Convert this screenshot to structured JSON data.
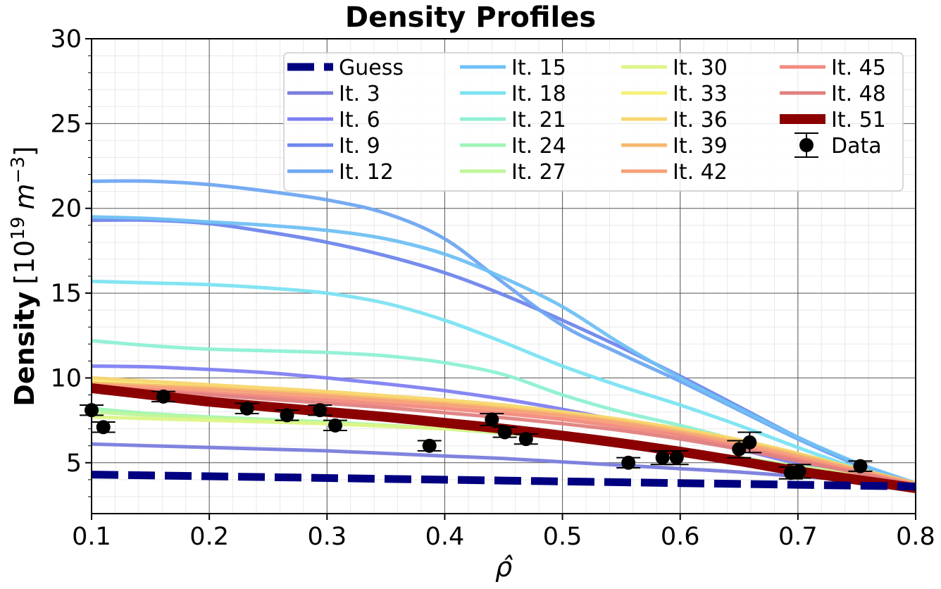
{
  "chart_data": {
    "type": "line",
    "title": "Density Profiles",
    "xlabel": "ρ̂",
    "ylabel_bold": "Density",
    "ylabel_unit": "[10",
    "ylabel_exp": "19",
    "ylabel_m": "m",
    "ylabel_mexp": "−3",
    "ylabel_close": "]",
    "xlim": [
      0.1,
      0.8
    ],
    "ylim": [
      2,
      30
    ],
    "xticks": [
      0.1,
      0.2,
      0.3,
      0.4,
      0.5,
      0.6,
      0.7,
      0.8
    ],
    "xtick_labels": [
      "0.1",
      "0.2",
      "0.3",
      "0.4",
      "0.5",
      "0.6",
      "0.7",
      "0.8"
    ],
    "yticks": [
      5,
      10,
      15,
      20,
      25,
      30
    ],
    "ytick_labels": [
      "5",
      "10",
      "15",
      "20",
      "25",
      "30"
    ],
    "grid": true,
    "legend_position": "top-right",
    "x": [
      0.1,
      0.15,
      0.2,
      0.25,
      0.3,
      0.35,
      0.4,
      0.45,
      0.5,
      0.55,
      0.6,
      0.65,
      0.7,
      0.75,
      0.8
    ],
    "series": [
      {
        "name": "Guess",
        "color": "#000080",
        "style": "dashed",
        "width": 11,
        "values": [
          4.3,
          4.25,
          4.2,
          4.15,
          4.1,
          4.05,
          4.0,
          3.95,
          3.9,
          3.85,
          3.8,
          3.75,
          3.7,
          3.65,
          3.6
        ]
      },
      {
        "name": "It. 3",
        "color": "#7a7cdc",
        "style": "solid",
        "width": 5,
        "values": [
          6.1,
          6.0,
          5.9,
          5.8,
          5.7,
          5.55,
          5.4,
          5.25,
          5.05,
          4.85,
          4.65,
          4.45,
          4.2,
          3.95,
          3.65
        ]
      },
      {
        "name": "It. 6",
        "color": "#7f7ff2",
        "style": "solid",
        "width": 5,
        "values": [
          10.7,
          10.65,
          10.5,
          10.3,
          10.0,
          9.65,
          9.25,
          8.75,
          8.15,
          7.45,
          6.65,
          5.8,
          4.95,
          4.25,
          3.7
        ]
      },
      {
        "name": "It. 9",
        "color": "#6f86ec",
        "style": "solid",
        "width": 5,
        "values": [
          19.3,
          19.3,
          19.1,
          18.6,
          18.0,
          17.2,
          16.2,
          14.9,
          13.4,
          11.8,
          10.1,
          8.3,
          6.5,
          4.9,
          3.8
        ]
      },
      {
        "name": "It. 12",
        "color": "#6fa7f1",
        "style": "solid",
        "width": 5,
        "values": [
          21.6,
          21.6,
          21.4,
          21.0,
          20.5,
          19.7,
          18.2,
          15.6,
          13.1,
          11.4,
          9.8,
          8.1,
          6.4,
          4.9,
          3.8
        ]
      },
      {
        "name": "It. 15",
        "color": "#70c0f4",
        "style": "solid",
        "width": 5,
        "values": [
          19.5,
          19.4,
          19.2,
          19.0,
          18.7,
          18.2,
          17.3,
          15.9,
          14.2,
          12.0,
          10.0,
          8.2,
          6.5,
          5.0,
          3.8
        ]
      },
      {
        "name": "It. 18",
        "color": "#7ce3f2",
        "style": "solid",
        "width": 5,
        "values": [
          15.7,
          15.6,
          15.5,
          15.3,
          15.0,
          14.4,
          13.4,
          12.1,
          10.7,
          9.5,
          8.4,
          7.2,
          5.9,
          4.7,
          3.8
        ]
      },
      {
        "name": "It. 21",
        "color": "#8ef0d4",
        "style": "solid",
        "width": 5,
        "values": [
          12.2,
          11.9,
          11.7,
          11.6,
          11.5,
          11.3,
          10.9,
          10.2,
          9.0,
          8.0,
          7.2,
          6.3,
          5.4,
          4.5,
          3.8
        ]
      },
      {
        "name": "It. 24",
        "color": "#9ef5b6",
        "style": "solid",
        "width": 5,
        "values": [
          8.2,
          7.9,
          7.7,
          7.55,
          7.4,
          7.2,
          7.0,
          6.75,
          6.5,
          6.2,
          5.8,
          5.3,
          4.8,
          4.3,
          3.8
        ]
      },
      {
        "name": "It. 27",
        "color": "#bff59a",
        "style": "solid",
        "width": 5,
        "values": [
          8.0,
          7.8,
          7.65,
          7.5,
          7.35,
          7.2,
          7.0,
          6.75,
          6.5,
          6.2,
          5.8,
          5.3,
          4.8,
          4.3,
          3.8
        ]
      },
      {
        "name": "It. 30",
        "color": "#dcf587",
        "style": "solid",
        "width": 5,
        "values": [
          7.7,
          7.6,
          7.5,
          7.4,
          7.3,
          7.15,
          7.0,
          6.8,
          6.5,
          6.1,
          5.65,
          5.2,
          4.7,
          4.25,
          3.8
        ]
      },
      {
        "name": "It. 33",
        "color": "#f6f27a",
        "style": "solid",
        "width": 5,
        "values": [
          9.8,
          9.65,
          9.5,
          9.3,
          9.1,
          8.85,
          8.6,
          8.3,
          7.95,
          7.5,
          7.0,
          6.3,
          5.5,
          4.6,
          3.8
        ]
      },
      {
        "name": "It. 36",
        "color": "#f7d66e",
        "style": "solid",
        "width": 5,
        "values": [
          10.0,
          9.8,
          9.6,
          9.4,
          9.2,
          8.95,
          8.7,
          8.4,
          8.0,
          7.55,
          7.0,
          6.35,
          5.55,
          4.65,
          3.8
        ]
      },
      {
        "name": "It. 39",
        "color": "#f6b86e",
        "style": "solid",
        "width": 5,
        "values": [
          9.7,
          9.55,
          9.4,
          9.2,
          9.0,
          8.75,
          8.5,
          8.2,
          7.85,
          7.4,
          6.85,
          6.2,
          5.45,
          4.6,
          3.8
        ]
      },
      {
        "name": "It. 42",
        "color": "#f5a079",
        "style": "solid",
        "width": 5,
        "values": [
          9.6,
          9.45,
          9.3,
          9.1,
          8.9,
          8.65,
          8.4,
          8.1,
          7.75,
          7.3,
          6.75,
          6.1,
          5.35,
          4.55,
          3.75
        ]
      },
      {
        "name": "It. 45",
        "color": "#f28a7e",
        "style": "solid",
        "width": 5,
        "values": [
          9.5,
          9.3,
          9.1,
          8.9,
          8.7,
          8.45,
          8.2,
          7.9,
          7.55,
          7.1,
          6.6,
          5.95,
          5.2,
          4.45,
          3.7
        ]
      },
      {
        "name": "It. 48",
        "color": "#e07f7f",
        "style": "solid",
        "width": 5,
        "values": [
          9.4,
          9.2,
          9.0,
          8.75,
          8.5,
          8.25,
          7.95,
          7.65,
          7.3,
          6.9,
          6.4,
          5.8,
          5.1,
          4.4,
          3.65
        ]
      },
      {
        "name": "It. 51",
        "color": "#8b0000",
        "style": "solid",
        "width": 14,
        "values": [
          9.4,
          9.0,
          8.6,
          8.3,
          8.0,
          7.7,
          7.35,
          7.0,
          6.6,
          6.15,
          5.65,
          5.1,
          4.5,
          4.0,
          3.5
        ]
      }
    ],
    "data_points": {
      "name": "Data",
      "color": "#000000",
      "points": [
        {
          "x": 0.1,
          "y": 8.1,
          "err": 0.3
        },
        {
          "x": 0.11,
          "y": 7.1,
          "err": 0.3
        },
        {
          "x": 0.161,
          "y": 8.9,
          "err": 0.3
        },
        {
          "x": 0.232,
          "y": 8.2,
          "err": 0.3
        },
        {
          "x": 0.266,
          "y": 7.8,
          "err": 0.3
        },
        {
          "x": 0.294,
          "y": 8.1,
          "err": 0.3
        },
        {
          "x": 0.307,
          "y": 7.2,
          "err": 0.3
        },
        {
          "x": 0.387,
          "y": 6.0,
          "err": 0.3
        },
        {
          "x": 0.44,
          "y": 7.55,
          "err": 0.35
        },
        {
          "x": 0.451,
          "y": 6.8,
          "err": 0.3
        },
        {
          "x": 0.469,
          "y": 6.4,
          "err": 0.3
        },
        {
          "x": 0.556,
          "y": 5.0,
          "err": 0.3
        },
        {
          "x": 0.585,
          "y": 5.3,
          "err": 0.4
        },
        {
          "x": 0.597,
          "y": 5.3,
          "err": 0.4
        },
        {
          "x": 0.65,
          "y": 5.8,
          "err": 0.5
        },
        {
          "x": 0.659,
          "y": 6.2,
          "err": 0.6
        },
        {
          "x": 0.694,
          "y": 4.4,
          "err": 0.35
        },
        {
          "x": 0.701,
          "y": 4.5,
          "err": 0.4
        },
        {
          "x": 0.753,
          "y": 4.8,
          "err": 0.3
        }
      ]
    }
  }
}
